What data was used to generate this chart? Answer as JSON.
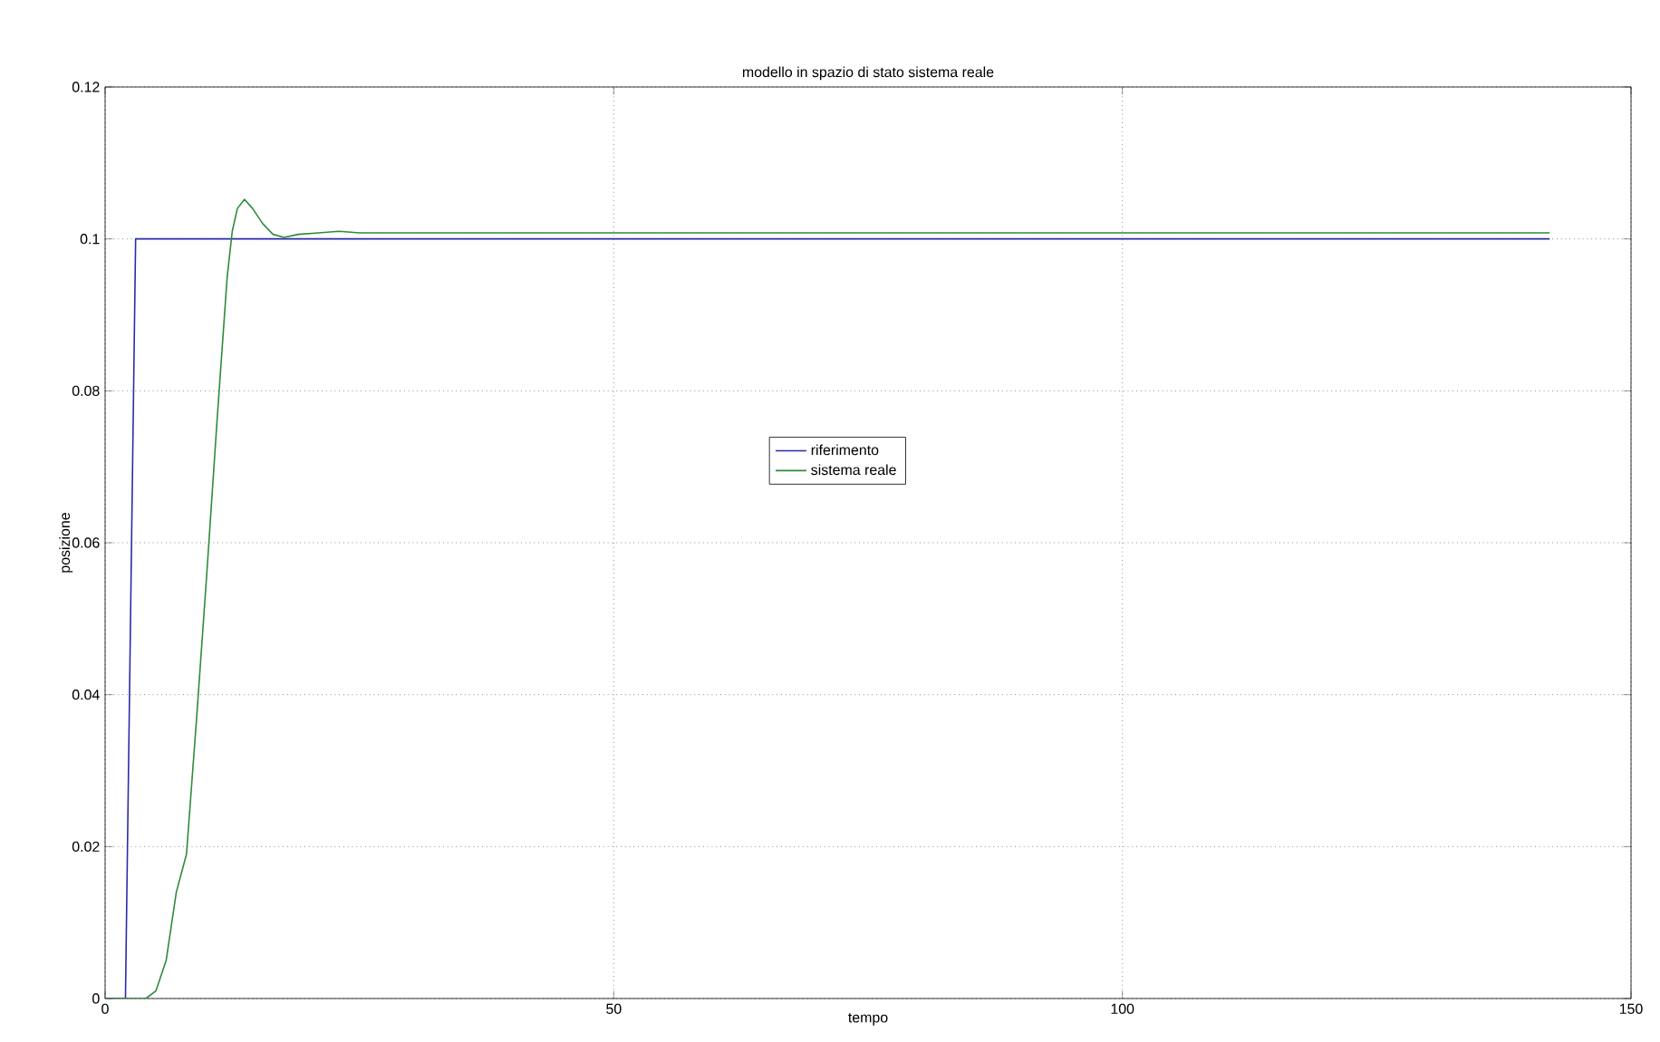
{
  "chart_data": {
    "type": "line",
    "title": "modello in spazio di stato sistema reale",
    "xlabel": "tempo",
    "ylabel": "posizione",
    "xlim": [
      0,
      150
    ],
    "xticks": [
      0,
      50,
      100,
      150
    ],
    "ylim": [
      0,
      0.12
    ],
    "yticks": [
      0,
      0.02,
      0.04,
      0.06,
      0.08,
      0.1,
      0.12
    ],
    "grid": true,
    "legend": "center",
    "line_style": "solid",
    "marker": "none",
    "series": [
      {
        "name": "riferimento",
        "color": "#2b2ba8",
        "x": [
          0,
          2,
          3,
          142
        ],
        "values": [
          0,
          0,
          0.1,
          0.1
        ]
      },
      {
        "name": "sistema reale",
        "color": "#2e8b3a",
        "x": [
          0,
          4,
          5,
          6,
          7,
          8,
          9,
          10,
          11,
          12,
          12.5,
          13,
          13.7,
          14.5,
          15.5,
          16.5,
          17.6,
          19,
          21,
          23,
          25,
          142
        ],
        "values": [
          0,
          0,
          0.001,
          0.005,
          0.014,
          0.019,
          0.037,
          0.056,
          0.076,
          0.095,
          0.101,
          0.104,
          0.1052,
          0.104,
          0.102,
          0.1006,
          0.1002,
          0.1006,
          0.1008,
          0.101,
          0.1008,
          0.1008
        ]
      }
    ]
  }
}
